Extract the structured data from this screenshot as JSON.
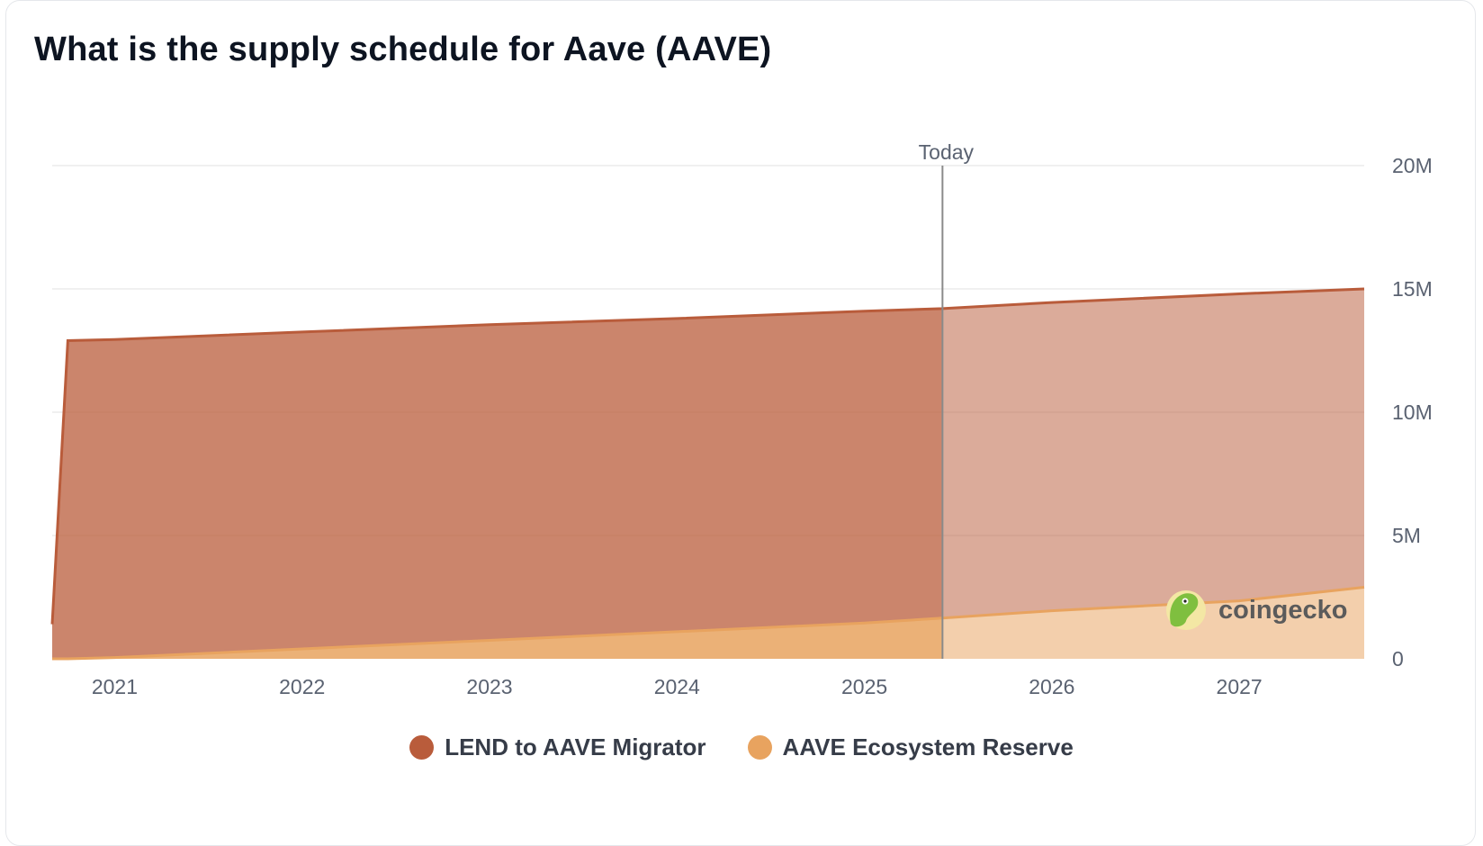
{
  "header": {
    "title": "What is the supply schedule for Aave (AAVE)"
  },
  "watermark": {
    "text": "coingecko",
    "icon": "gecko-logo-icon"
  },
  "colors": {
    "migrator": "#b95c3b",
    "reserve": "#e8a35f",
    "today_line": "#8a8a8a",
    "grid": "#ececec"
  },
  "chart_data": {
    "type": "area",
    "stacked": true,
    "title": "What is the supply schedule for Aave (AAVE)",
    "xlabel": "",
    "ylabel": "",
    "x_ticks": [
      "2021",
      "2022",
      "2023",
      "2024",
      "2025",
      "2026",
      "2027"
    ],
    "x_range": [
      "2020-09",
      "2027-09"
    ],
    "y_ticks": [
      "0",
      "5M",
      "10M",
      "15M",
      "20M"
    ],
    "ylim": [
      0,
      20000000
    ],
    "y_axis_side": "right",
    "grid": true,
    "legend_position": "bottom-center",
    "today_marker": {
      "label": "Today",
      "x": "2025-06"
    },
    "x": [
      "2020-09",
      "2020-10",
      "2021-01",
      "2022-01",
      "2023-01",
      "2024-01",
      "2025-01",
      "2025-06",
      "2026-01",
      "2027-01",
      "2027-09"
    ],
    "series": [
      {
        "name": "AAVE Ecosystem Reserve",
        "color": "#e8a35f",
        "values": [
          0,
          0,
          50000,
          400000,
          750000,
          1100000,
          1450000,
          1650000,
          1950000,
          2350000,
          2900000
        ]
      },
      {
        "name": "LEND to AAVE Migrator",
        "color": "#b95c3b",
        "values": [
          1400000,
          12900000,
          12900000,
          12850000,
          12800000,
          12700000,
          12650000,
          12550000,
          12500000,
          12450000,
          12100000
        ]
      }
    ]
  }
}
